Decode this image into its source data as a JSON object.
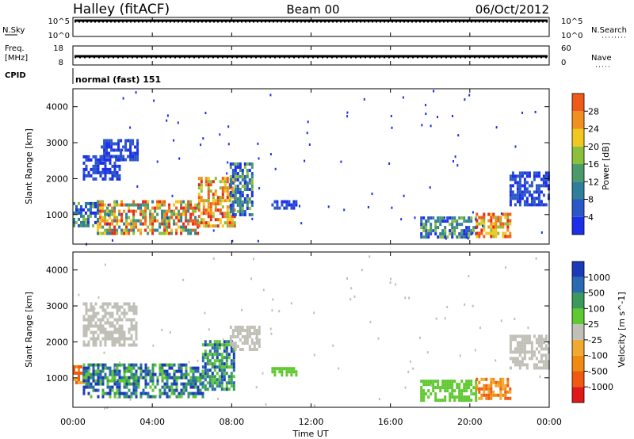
{
  "header": {
    "station": "Halley (fitACF)",
    "beam": "Beam 00",
    "date": "06/Oct/2012"
  },
  "noise_panel": {
    "left_label": "N.Sky",
    "right_label": "N.Search",
    "left_ticks": [
      "10^5",
      "10^0"
    ],
    "right_ticks": [
      "10^5",
      "10^0"
    ]
  },
  "freq_panel": {
    "left_label_1": "Freq.",
    "left_label_2": "[MHz]",
    "right_label": "Nave",
    "left_ticks": [
      "18",
      "8"
    ],
    "right_ticks": [
      "60",
      "0"
    ]
  },
  "cpid_panel": {
    "label": "CPID",
    "text": "normal (fast) 151"
  },
  "x_axis": {
    "label": "Time UT",
    "ticks": [
      "00:00",
      "04:00",
      "08:00",
      "12:00",
      "16:00",
      "20:00",
      "00:00"
    ]
  },
  "colors": {
    "power": [
      "#1c2ee8",
      "#2a58c8",
      "#2f7f9a",
      "#4a9a6c",
      "#8cbf3c",
      "#f0c820",
      "#f09020",
      "#f05a18",
      "#e82818"
    ],
    "velocity": [
      "#e01818",
      "#f05a10",
      "#f08a10",
      "#f0aa30",
      "#c0c0b8",
      "#60c830",
      "#3a9a5a",
      "#2a6ab0",
      "#1a3ab8"
    ]
  },
  "chart_data": [
    {
      "type": "heatmap",
      "name": "power",
      "ylabel": "Slant Range [km]",
      "xlabel": "",
      "xlim": [
        0,
        24
      ],
      "ylim": [
        180,
        4500
      ],
      "y_ticks": [
        "1000",
        "2000",
        "3000",
        "4000"
      ],
      "y_tick_values": [
        1000,
        2000,
        3000,
        4000
      ],
      "colorbar": {
        "label": "Power [dB]",
        "ticks": [
          "4",
          "8",
          "12",
          "16",
          "20",
          "24",
          "28"
        ],
        "range": [
          0,
          32
        ]
      },
      "regions": [
        {
          "t0": 0.0,
          "t1": 1.2,
          "r0": 700,
          "r1": 1350,
          "level": "mixed-low"
        },
        {
          "t0": 1.2,
          "t1": 6.3,
          "r0": 500,
          "r1": 1400,
          "level": "mixed-high"
        },
        {
          "t0": 6.3,
          "t1": 8.1,
          "r0": 700,
          "r1": 2050,
          "level": "high"
        },
        {
          "t0": 7.9,
          "t1": 9.0,
          "r0": 1000,
          "r1": 2450,
          "level": "mixed-low"
        },
        {
          "t0": 0.5,
          "t1": 2.3,
          "r0": 1950,
          "r1": 2650,
          "level": "low"
        },
        {
          "t0": 1.4,
          "t1": 3.2,
          "r0": 2550,
          "r1": 3100,
          "level": "low"
        },
        {
          "t0": 10.0,
          "t1": 11.2,
          "r0": 1150,
          "r1": 1400,
          "level": "low"
        },
        {
          "t0": 17.5,
          "t1": 20.3,
          "r0": 350,
          "r1": 950,
          "level": "mixed-low"
        },
        {
          "t0": 20.3,
          "t1": 22.0,
          "r0": 400,
          "r1": 1050,
          "level": "high"
        },
        {
          "t0": 22.0,
          "t1": 24.0,
          "r0": 1250,
          "r1": 2200,
          "level": "low"
        }
      ]
    },
    {
      "type": "heatmap",
      "name": "velocity",
      "ylabel": "Slant Range [km]",
      "xlabel": "Time UT",
      "xlim": [
        0,
        24
      ],
      "ylim": [
        180,
        4500
      ],
      "y_ticks": [
        "1000",
        "2000",
        "3000",
        "4000"
      ],
      "y_tick_values": [
        1000,
        2000,
        3000,
        4000
      ],
      "colorbar": {
        "label": "Velocity [m s^-1]",
        "ticks": [
          "-1000",
          "-500",
          "-100",
          "-25",
          "25",
          "100",
          "500",
          "1000"
        ]
      },
      "regions": [
        {
          "t0": 0.0,
          "t1": 0.5,
          "r0": 900,
          "r1": 1350,
          "level": "orange"
        },
        {
          "t0": 0.5,
          "t1": 6.5,
          "r0": 500,
          "r1": 1400,
          "level": "green-blue"
        },
        {
          "t0": 6.5,
          "t1": 8.1,
          "r0": 700,
          "r1": 2050,
          "level": "green-blue"
        },
        {
          "t0": 7.9,
          "t1": 9.4,
          "r0": 1800,
          "r1": 2450,
          "level": "grey"
        },
        {
          "t0": 0.5,
          "t1": 3.2,
          "r0": 1900,
          "r1": 3100,
          "level": "grey"
        },
        {
          "t0": 10.0,
          "t1": 11.2,
          "r0": 1100,
          "r1": 1300,
          "level": "lightgreen"
        },
        {
          "t0": 17.5,
          "t1": 20.3,
          "r0": 350,
          "r1": 950,
          "level": "lightgreen"
        },
        {
          "t0": 20.3,
          "t1": 22.0,
          "r0": 450,
          "r1": 1000,
          "level": "orange"
        },
        {
          "t0": 22.0,
          "t1": 24.0,
          "r0": 1300,
          "r1": 2200,
          "level": "grey"
        }
      ]
    }
  ]
}
